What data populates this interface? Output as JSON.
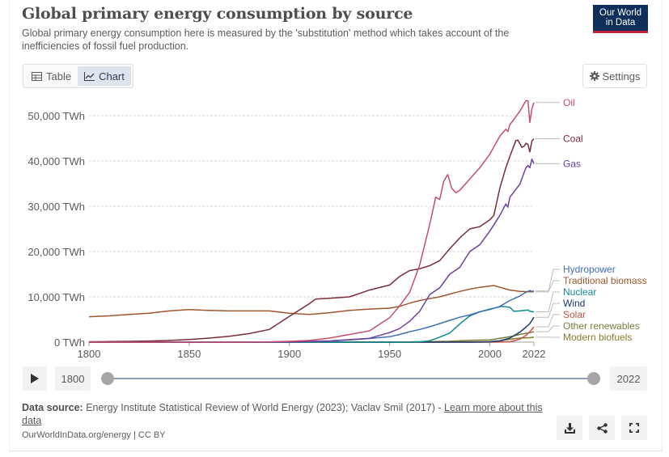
{
  "header": {
    "title": "Global primary energy consumption by source",
    "subtitle": "Global primary energy consumption here is measured by the 'substitution' method which takes account of the inefficiencies of fossil fuel production.",
    "logo_line1": "Our World",
    "logo_line2": "in Data"
  },
  "tabs": [
    {
      "label": "Table",
      "icon": "table-icon",
      "active": false
    },
    {
      "label": "Chart",
      "icon": "line-chart-icon",
      "active": true
    }
  ],
  "settings_label": "Settings",
  "chart_data": {
    "type": "line",
    "title": "Global primary energy consumption by source",
    "xlabel": "",
    "ylabel": "",
    "xlim": [
      1800,
      2022
    ],
    "ylim": [
      0,
      55000
    ],
    "x_ticks": [
      1800,
      1850,
      1900,
      1950,
      2000,
      2022
    ],
    "x_tick_labels": [
      "1800",
      "1850",
      "1900",
      "1950",
      "2000",
      "2022"
    ],
    "y_ticks": [
      0,
      10000,
      20000,
      30000,
      40000,
      50000
    ],
    "y_tick_labels": [
      "0 TWh",
      "10,000 TWh",
      "20,000 TWh",
      "30,000 TWh",
      "40,000 TWh",
      "50,000 TWh"
    ],
    "grid": "horizontal dashed",
    "legend": "right, labels at line ends",
    "series": [
      {
        "name": "Oil",
        "color": "#c44e6b",
        "points": [
          [
            1800,
            0
          ],
          [
            1860,
            0
          ],
          [
            1870,
            5
          ],
          [
            1880,
            20
          ],
          [
            1890,
            80
          ],
          [
            1900,
            180
          ],
          [
            1910,
            380
          ],
          [
            1920,
            900
          ],
          [
            1930,
            1700
          ],
          [
            1940,
            2500
          ],
          [
            1950,
            5400
          ],
          [
            1955,
            8000
          ],
          [
            1960,
            11000
          ],
          [
            1965,
            17000
          ],
          [
            1970,
            26000
          ],
          [
            1973,
            32000
          ],
          [
            1975,
            31500
          ],
          [
            1977,
            35500
          ],
          [
            1979,
            37000
          ],
          [
            1981,
            34000
          ],
          [
            1983,
            33000
          ],
          [
            1985,
            33500
          ],
          [
            1990,
            36000
          ],
          [
            1995,
            38500
          ],
          [
            2000,
            41500
          ],
          [
            2005,
            45500
          ],
          [
            2008,
            47000
          ],
          [
            2009,
            46500
          ],
          [
            2010,
            48000
          ],
          [
            2015,
            51000
          ],
          [
            2018,
            53300
          ],
          [
            2019,
            53300
          ],
          [
            2020,
            48500
          ],
          [
            2021,
            51500
          ],
          [
            2022,
            52900
          ]
        ]
      },
      {
        "name": "Coal",
        "color": "#7a2b38",
        "points": [
          [
            1800,
            97
          ],
          [
            1810,
            130
          ],
          [
            1820,
            170
          ],
          [
            1830,
            250
          ],
          [
            1840,
            380
          ],
          [
            1850,
            570
          ],
          [
            1860,
            900
          ],
          [
            1870,
            1300
          ],
          [
            1880,
            1900
          ],
          [
            1890,
            2800
          ],
          [
            1900,
            5700
          ],
          [
            1910,
            8500
          ],
          [
            1913,
            9500
          ],
          [
            1920,
            9700
          ],
          [
            1930,
            10000
          ],
          [
            1940,
            11500
          ],
          [
            1950,
            12600
          ],
          [
            1955,
            14500
          ],
          [
            1960,
            15800
          ],
          [
            1965,
            16200
          ],
          [
            1970,
            16900
          ],
          [
            1975,
            18000
          ],
          [
            1980,
            20600
          ],
          [
            1985,
            23000
          ],
          [
            1990,
            25000
          ],
          [
            1995,
            25500
          ],
          [
            2000,
            27000
          ],
          [
            2002,
            28000
          ],
          [
            2005,
            34000
          ],
          [
            2008,
            38500
          ],
          [
            2010,
            41000
          ],
          [
            2013,
            44500
          ],
          [
            2014,
            44600
          ],
          [
            2015,
            43800
          ],
          [
            2016,
            43000
          ],
          [
            2017,
            43200
          ],
          [
            2018,
            43900
          ],
          [
            2019,
            43700
          ],
          [
            2020,
            42000
          ],
          [
            2021,
            44400
          ],
          [
            2022,
            44900
          ]
        ]
      },
      {
        "name": "Gas",
        "color": "#6c3fa0",
        "points": [
          [
            1800,
            0
          ],
          [
            1880,
            5
          ],
          [
            1890,
            10
          ],
          [
            1900,
            60
          ],
          [
            1910,
            180
          ],
          [
            1920,
            270
          ],
          [
            1930,
            550
          ],
          [
            1940,
            850
          ],
          [
            1950,
            2100
          ],
          [
            1955,
            3000
          ],
          [
            1960,
            4600
          ],
          [
            1965,
            6800
          ],
          [
            1970,
            10500
          ],
          [
            1975,
            12000
          ],
          [
            1980,
            15000
          ],
          [
            1985,
            16500
          ],
          [
            1990,
            20000
          ],
          [
            1995,
            21500
          ],
          [
            2000,
            24500
          ],
          [
            2005,
            28000
          ],
          [
            2008,
            30500
          ],
          [
            2009,
            29800
          ],
          [
            2010,
            32000
          ],
          [
            2015,
            34900
          ],
          [
            2018,
            38500
          ],
          [
            2019,
            39000
          ],
          [
            2020,
            38500
          ],
          [
            2021,
            40400
          ],
          [
            2022,
            39400
          ]
        ]
      },
      {
        "name": "Hydropower",
        "color": "#3f6fb5",
        "points": [
          [
            1800,
            0
          ],
          [
            1890,
            0
          ],
          [
            1900,
            40
          ],
          [
            1910,
            130
          ],
          [
            1920,
            240
          ],
          [
            1930,
            480
          ],
          [
            1940,
            800
          ],
          [
            1950,
            1200
          ],
          [
            1955,
            1700
          ],
          [
            1960,
            2300
          ],
          [
            1965,
            2800
          ],
          [
            1970,
            3400
          ],
          [
            1975,
            4100
          ],
          [
            1980,
            4800
          ],
          [
            1985,
            5500
          ],
          [
            1990,
            6000
          ],
          [
            1995,
            6700
          ],
          [
            2000,
            7200
          ],
          [
            2005,
            7900
          ],
          [
            2010,
            9200
          ],
          [
            2015,
            10200
          ],
          [
            2018,
            11000
          ],
          [
            2020,
            11400
          ],
          [
            2021,
            11200
          ],
          [
            2022,
            11300
          ]
        ]
      },
      {
        "name": "Traditional biomass",
        "color": "#a0572e",
        "points": [
          [
            1800,
            5600
          ],
          [
            1810,
            5800
          ],
          [
            1820,
            6100
          ],
          [
            1830,
            6400
          ],
          [
            1840,
            6900
          ],
          [
            1850,
            7200
          ],
          [
            1860,
            7000
          ],
          [
            1870,
            6900
          ],
          [
            1880,
            6900
          ],
          [
            1890,
            6900
          ],
          [
            1900,
            6400
          ],
          [
            1910,
            6100
          ],
          [
            1920,
            6500
          ],
          [
            1930,
            7000
          ],
          [
            1940,
            7300
          ],
          [
            1950,
            7500
          ],
          [
            1955,
            7900
          ],
          [
            1960,
            8600
          ],
          [
            1965,
            9200
          ],
          [
            1970,
            9600
          ],
          [
            1975,
            10000
          ],
          [
            1980,
            10600
          ],
          [
            1985,
            11200
          ],
          [
            1990,
            11700
          ],
          [
            1995,
            12100
          ],
          [
            2000,
            12400
          ],
          [
            2002,
            12500
          ],
          [
            2005,
            12100
          ],
          [
            2010,
            11500
          ],
          [
            2015,
            11200
          ],
          [
            2020,
            11100
          ],
          [
            2022,
            11100
          ]
        ]
      },
      {
        "name": "Nuclear",
        "color": "#0f8c8c",
        "points": [
          [
            1800,
            0
          ],
          [
            1955,
            0
          ],
          [
            1960,
            10
          ],
          [
            1965,
            80
          ],
          [
            1970,
            300
          ],
          [
            1975,
            1100
          ],
          [
            1980,
            2000
          ],
          [
            1985,
            4000
          ],
          [
            1990,
            5800
          ],
          [
            1995,
            6700
          ],
          [
            2000,
            7300
          ],
          [
            2005,
            7800
          ],
          [
            2006,
            7900
          ],
          [
            2010,
            7700
          ],
          [
            2012,
            6800
          ],
          [
            2015,
            6900
          ],
          [
            2019,
            7100
          ],
          [
            2020,
            6800
          ],
          [
            2022,
            6700
          ]
        ]
      },
      {
        "name": "Wind",
        "color": "#1a3a6b",
        "points": [
          [
            1800,
            0
          ],
          [
            1990,
            0
          ],
          [
            1995,
            25
          ],
          [
            2000,
            85
          ],
          [
            2005,
            280
          ],
          [
            2010,
            900
          ],
          [
            2015,
            2200
          ],
          [
            2018,
            3300
          ],
          [
            2020,
            4100
          ],
          [
            2021,
            4800
          ],
          [
            2022,
            5500
          ]
        ]
      },
      {
        "name": "Solar",
        "color": "#c4524a",
        "points": [
          [
            1800,
            0
          ],
          [
            2000,
            0
          ],
          [
            2005,
            10
          ],
          [
            2010,
            90
          ],
          [
            2012,
            260
          ],
          [
            2015,
            680
          ],
          [
            2018,
            1500
          ],
          [
            2020,
            2300
          ],
          [
            2021,
            2800
          ],
          [
            2022,
            3400
          ]
        ]
      },
      {
        "name": "Other renewables",
        "color": "#7d7a3a",
        "points": [
          [
            1800,
            0
          ],
          [
            1950,
            0
          ],
          [
            1960,
            50
          ],
          [
            1970,
            100
          ],
          [
            1980,
            200
          ],
          [
            1990,
            400
          ],
          [
            2000,
            500
          ],
          [
            2010,
            1200
          ],
          [
            2015,
            1700
          ],
          [
            2020,
            2100
          ],
          [
            2022,
            2300
          ]
        ]
      },
      {
        "name": "Modern biofuels",
        "color": "#8a7a2c",
        "points": [
          [
            1800,
            0
          ],
          [
            1975,
            0
          ],
          [
            1980,
            30
          ],
          [
            1990,
            70
          ],
          [
            2000,
            110
          ],
          [
            2005,
            220
          ],
          [
            2008,
            500
          ],
          [
            2010,
            620
          ],
          [
            2015,
            900
          ],
          [
            2020,
            980
          ],
          [
            2022,
            1100
          ]
        ]
      }
    ]
  },
  "timeline": {
    "start_year": "1800",
    "end_year": "2022"
  },
  "source": {
    "label": "Data source:",
    "text": "Energy Institute Statistical Review of World Energy (2023); Vaclav Smil (2017) - ",
    "link": "Learn more about this data"
  },
  "footer_url": "OurWorldInData.org/energy | CC BY"
}
